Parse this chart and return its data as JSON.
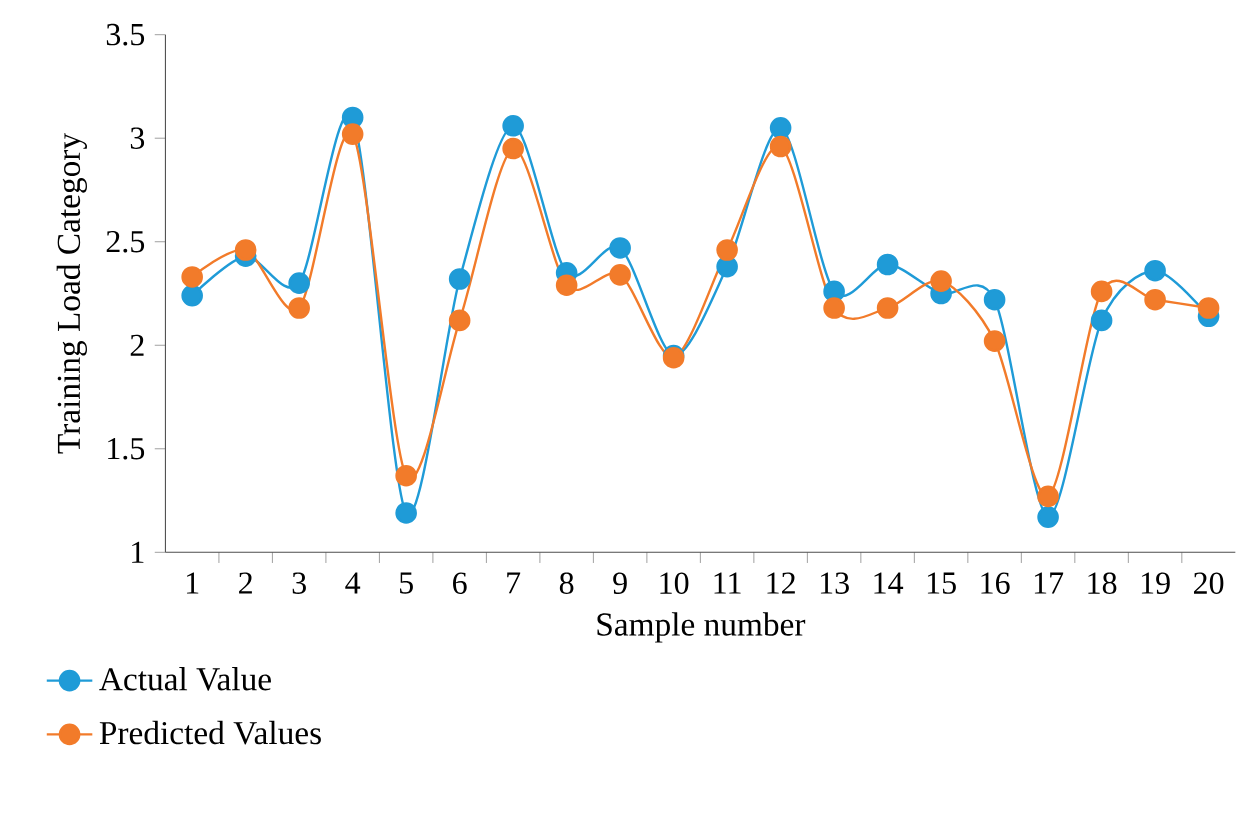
{
  "chart_data": {
    "type": "line",
    "xlabel": "Sample number",
    "ylabel": "Training Load Category",
    "categories": [
      "1",
      "2",
      "3",
      "4",
      "5",
      "6",
      "7",
      "8",
      "9",
      "10",
      "11",
      "12",
      "13",
      "14",
      "15",
      "16",
      "17",
      "18",
      "19",
      "20"
    ],
    "series": [
      {
        "name": "Actual Value",
        "color": "#1f9bd7",
        "values": [
          2.24,
          2.43,
          2.3,
          3.1,
          1.19,
          2.32,
          3.06,
          2.35,
          2.47,
          1.95,
          2.38,
          3.05,
          2.26,
          2.39,
          2.25,
          2.22,
          1.17,
          2.12,
          2.36,
          2.14
        ]
      },
      {
        "name": "Predicted Values",
        "color": "#f27b2a",
        "values": [
          2.33,
          2.46,
          2.18,
          3.02,
          1.37,
          2.12,
          2.95,
          2.29,
          2.34,
          1.94,
          2.46,
          2.96,
          2.18,
          2.18,
          2.31,
          2.02,
          1.27,
          2.26,
          2.22,
          2.18
        ]
      }
    ],
    "ylim": [
      1,
      3.5
    ],
    "yticks": [
      1,
      1.5,
      2,
      2.5,
      3,
      3.5
    ],
    "marker": "circle",
    "line_style": "solid",
    "legend": "bottom left",
    "grid": false
  }
}
